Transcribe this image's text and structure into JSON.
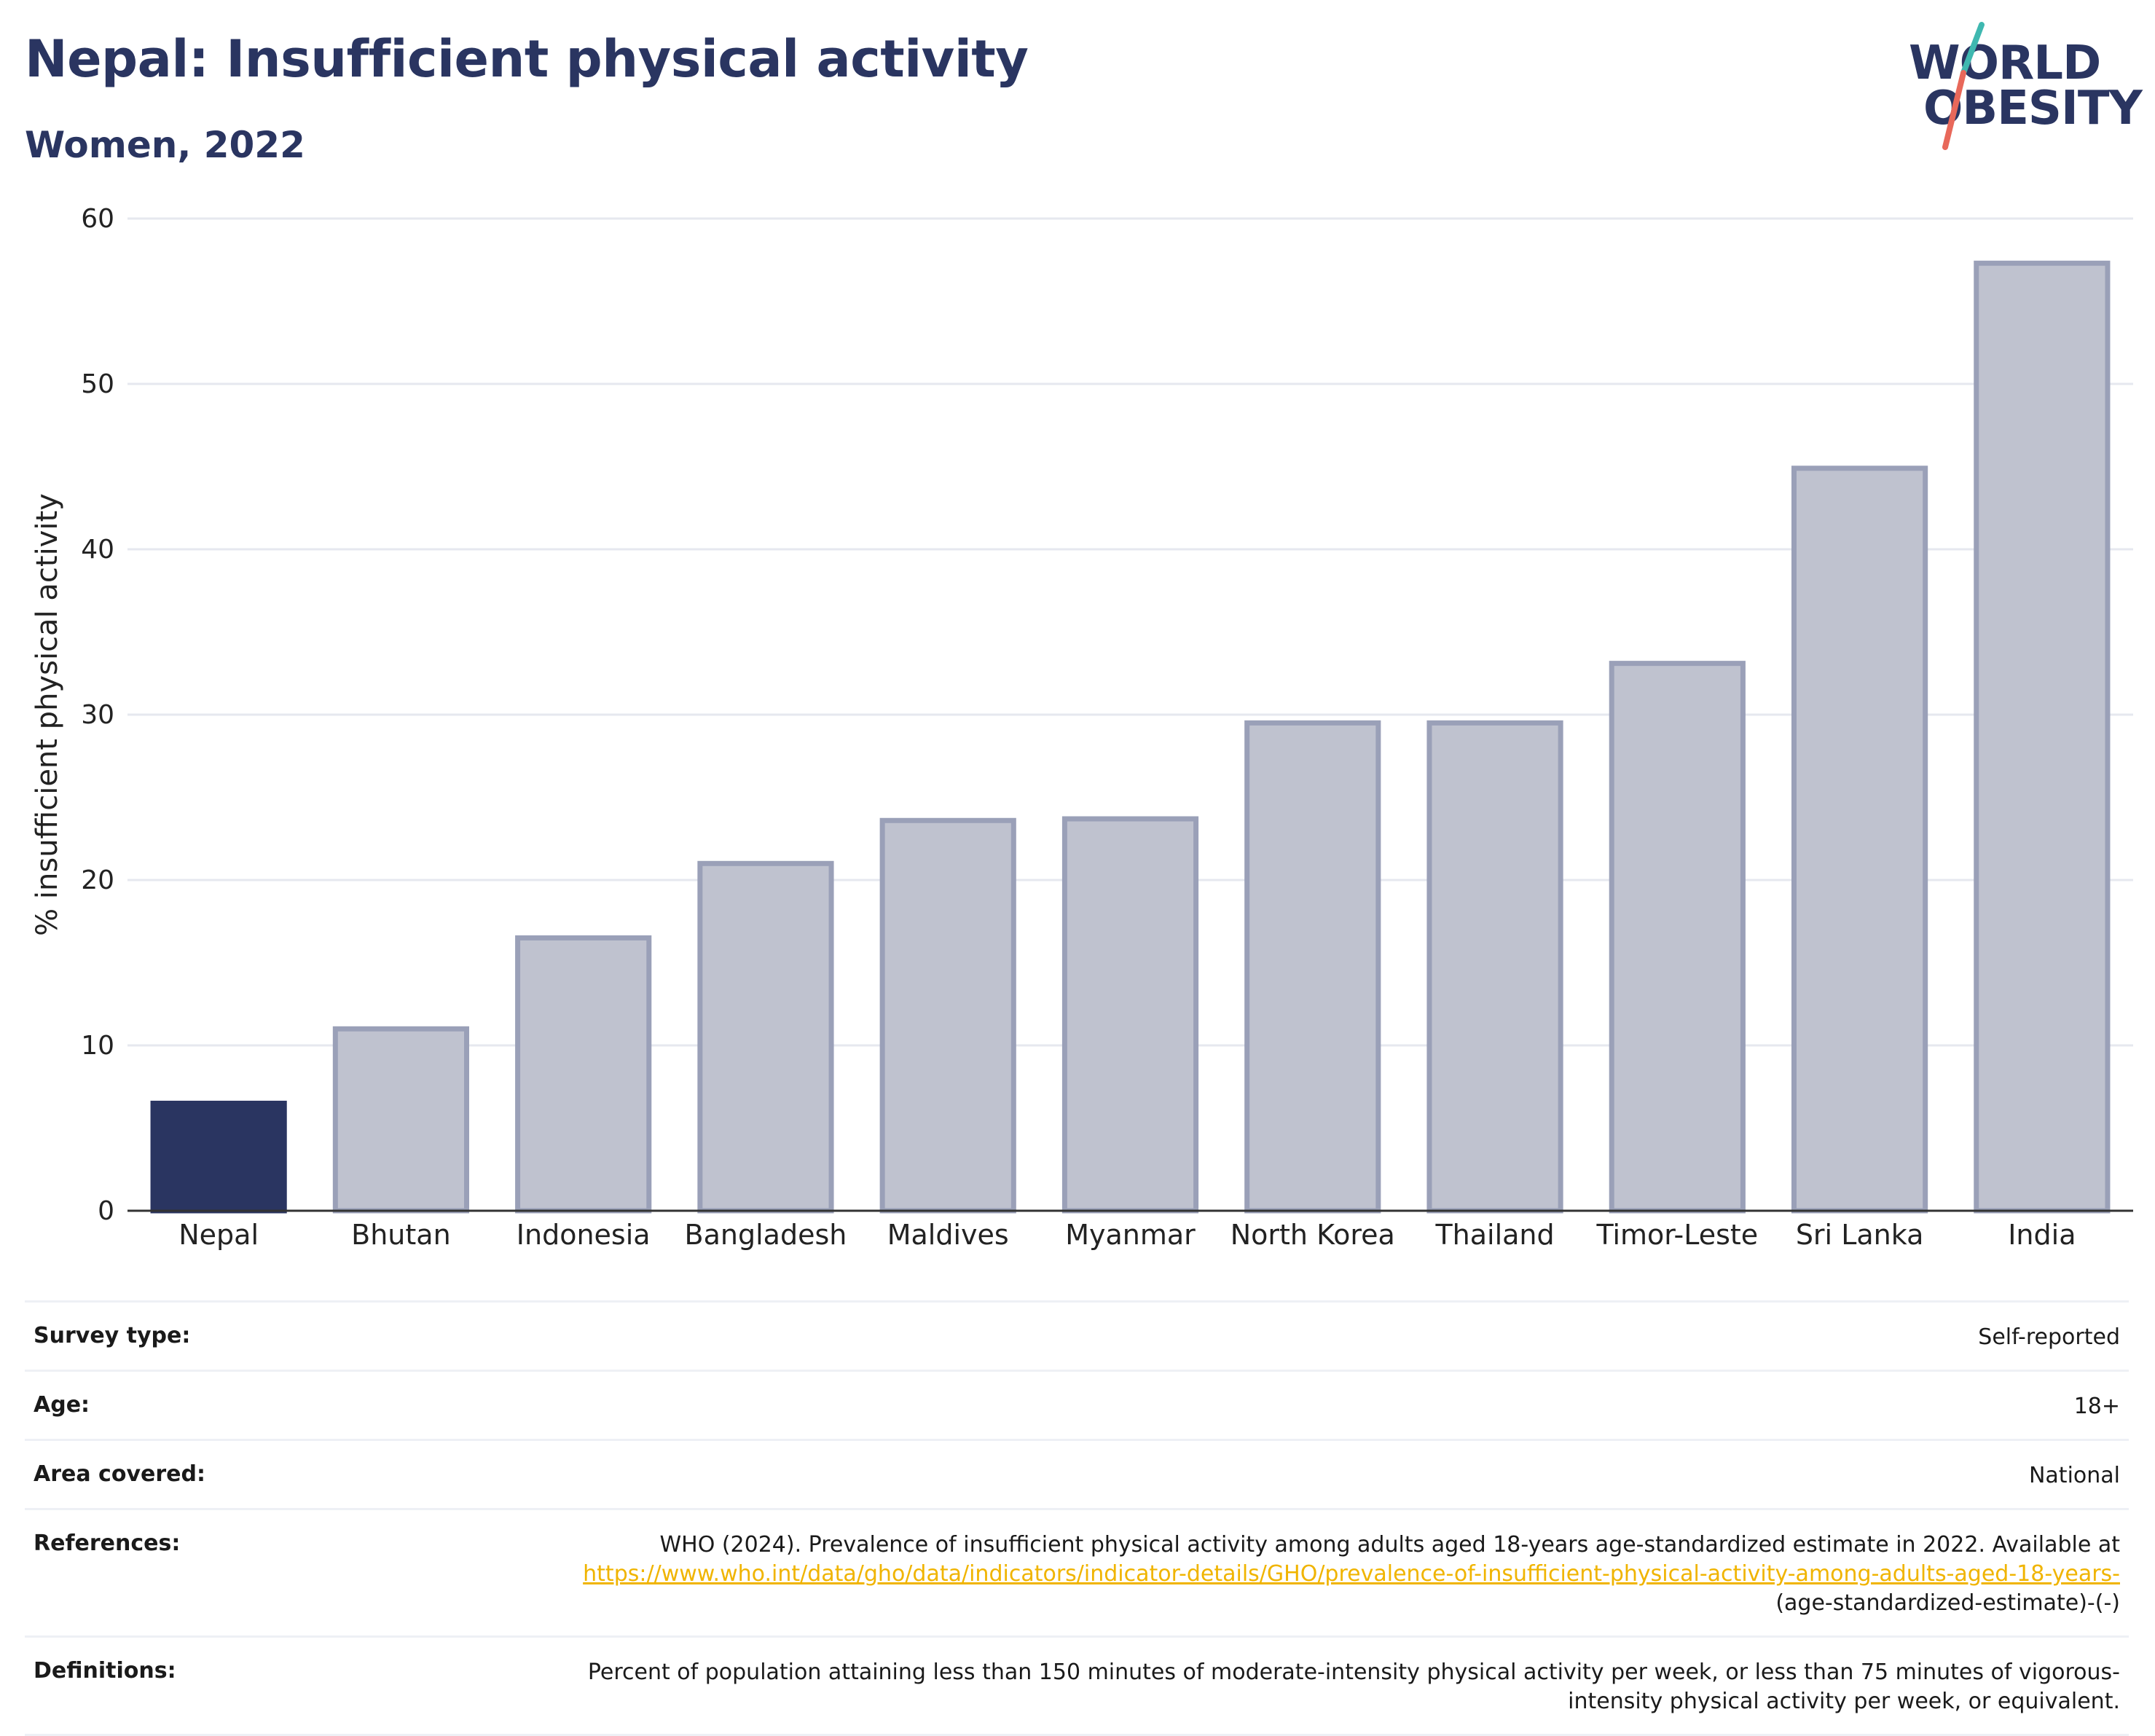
{
  "title": "Nepal: Insufficient physical activity",
  "subtitle": "Women, 2022",
  "logo": {
    "line1": "WORLD",
    "line2": "OBESITY",
    "slash_colors": [
      "#3fb8b0",
      "#e8685a"
    ]
  },
  "colors": {
    "highlight": "#2a3561",
    "other_fill": "#bfc2cf",
    "other_stroke": "#9aa0b8",
    "link": "#f0b400"
  },
  "chart_data": {
    "type": "bar",
    "categories": [
      "Nepal",
      "Bhutan",
      "Indonesia",
      "Bangladesh",
      "Maldives",
      "Myanmar",
      "North Korea",
      "Thailand",
      "Timor-Leste",
      "Sri Lanka",
      "India"
    ],
    "values": [
      6.5,
      11.0,
      16.5,
      21.0,
      23.6,
      23.7,
      29.5,
      29.5,
      33.1,
      44.9,
      57.3
    ],
    "highlight": "Nepal",
    "ylabel": "% insufficient physical activity",
    "xlabel": "",
    "ylim": [
      0,
      60
    ],
    "yticks": [
      0,
      10,
      20,
      30,
      40,
      50,
      60
    ],
    "grid": true
  },
  "meta": [
    {
      "key": "Survey type:",
      "value": "Self-reported"
    },
    {
      "key": "Age:",
      "value": "18+"
    },
    {
      "key": "Area covered:",
      "value": "National"
    },
    {
      "key": "References:",
      "value_before": "WHO (2024). Prevalence of insufficient physical activity among adults aged 18-years age-standardized estimate in 2022. Available at",
      "link": "https://www.who.int/data/gho/data/indicators/indicator-details/GHO/prevalence-of-insufficient-physical-activity-among-adults-aged-18-years-",
      "value_after": "(age-standardized-estimate)-(-)"
    },
    {
      "key": "Definitions:",
      "value": "Percent of population attaining less than 150 minutes of moderate-intensity physical activity per week, or less than 75 minutes of vigorous-intensity physical activity per week, or equivalent."
    }
  ]
}
